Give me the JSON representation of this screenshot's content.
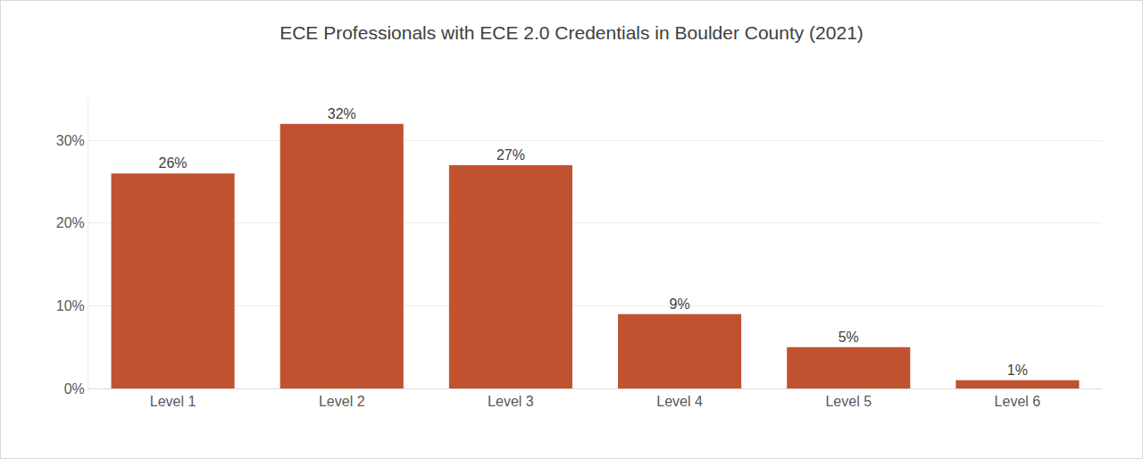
{
  "chart_data": {
    "type": "bar",
    "title": "ECE Professionals with ECE 2.0 Credentials in Boulder County (2021)",
    "categories": [
      "Level 1",
      "Level 2",
      "Level 3",
      "Level 4",
      "Level 5",
      "Level 6"
    ],
    "values": [
      26,
      32,
      27,
      9,
      5,
      1
    ],
    "value_labels": [
      "26%",
      "32%",
      "27%",
      "9%",
      "5%",
      "1%"
    ],
    "color": "#c0522f",
    "ylim": [
      0,
      35
    ],
    "yticks": [
      {
        "value": 0,
        "label": "0%"
      },
      {
        "value": 10,
        "label": "10%"
      },
      {
        "value": 20,
        "label": "20%"
      },
      {
        "value": 30,
        "label": "30%"
      }
    ],
    "grid": true,
    "data_labels": true
  }
}
